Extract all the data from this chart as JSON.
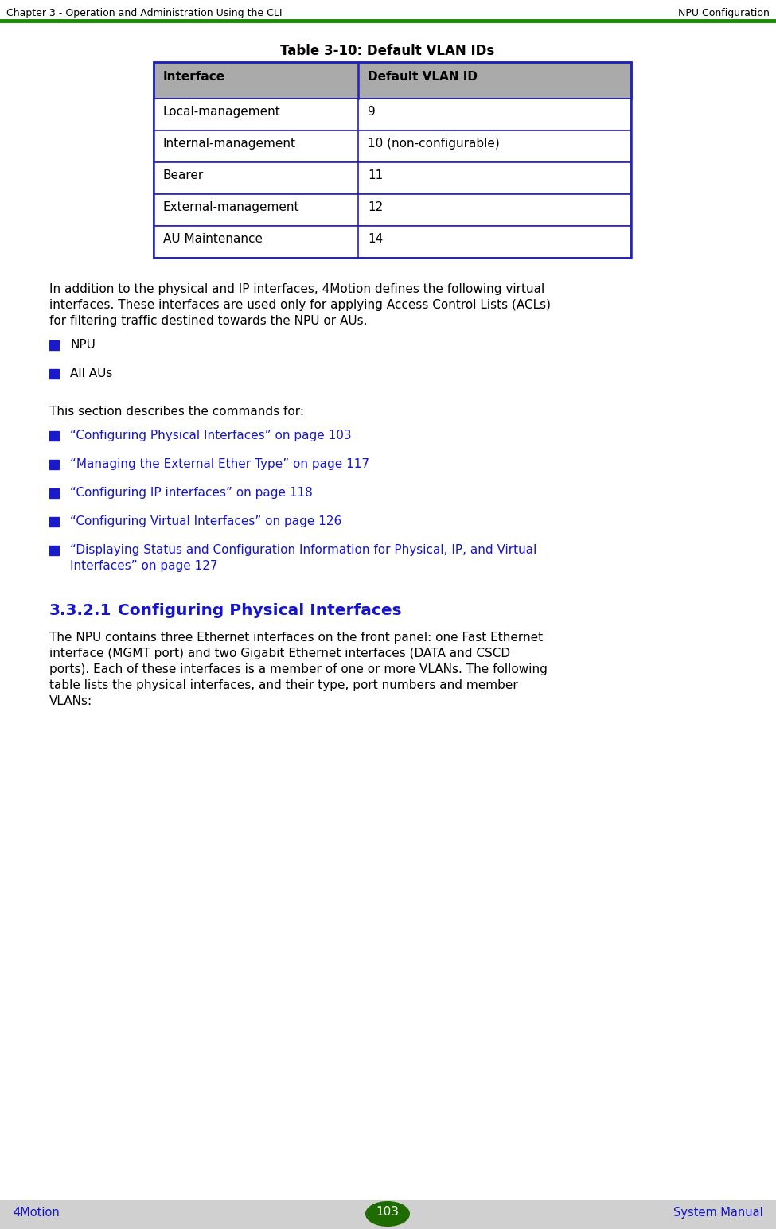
{
  "header_left": "Chapter 3 - Operation and Administration Using the CLI",
  "header_right": "NPU Configuration",
  "header_line_color": "#1a8a00",
  "footer_left": "4Motion",
  "footer_center": "103",
  "footer_right": "System Manual",
  "footer_bg": "#d0d0d0",
  "footer_text_color": "#1515cc",
  "footer_page_bg": "#1e6b00",
  "footer_page_text": "#ffffff",
  "table_title": "Table 3-10: Default VLAN IDs",
  "table_headers": [
    "Interface",
    "Default VLAN ID"
  ],
  "table_rows": [
    [
      "Local-management",
      "9"
    ],
    [
      "Internal-management",
      "10 (non-configurable)"
    ],
    [
      "Bearer",
      "11"
    ],
    [
      "External-management",
      "12"
    ],
    [
      "AU Maintenance",
      "14"
    ]
  ],
  "table_header_bg": "#aaaaaa",
  "table_border_color": "#2222bb",
  "body_text_color": "#000000",
  "link_color": "#1515cc",
  "section_heading_color": "#1515cc",
  "para1": "In addition to the physical and IP interfaces, 4Motion defines the following virtual\ninterfaces. These interfaces are used only for applying Access Control Lists (ACLs)\nfor filtering traffic destined towards the NPU or AUs.",
  "bullets_plain": [
    "NPU",
    "All AUs"
  ],
  "para2": "This section describes the commands for:",
  "bullets_links": [
    "“Configuring Physical Interfaces” on page 103",
    "“Managing the External Ether Type” on page 117",
    "“Configuring IP interfaces” on page 118",
    "“Configuring Virtual Interfaces” on page 126",
    "“Displaying Status and Configuration Information for Physical, IP, and Virtual\nInterfaces” on page 127"
  ],
  "section_num": "3.3.2.1",
  "section_title": "Configuring Physical Interfaces",
  "section_body": "The NPU contains three Ethernet interfaces on the front panel: one Fast Ethernet\ninterface (MGMT port) and two Gigabit Ethernet interfaces (DATA and CSCD\nports). Each of these interfaces is a member of one or more VLANs. The following\ntable lists the physical interfaces, and their type, port numbers and member\nVLANs:",
  "bg_color": "#ffffff",
  "header_font_size": 9.0,
  "body_font_size": 11.0,
  "table_font_size": 11.0,
  "section_heading_font_size": 14.5,
  "footer_font_size": 10.5,
  "table_title_font_size": 12.0
}
